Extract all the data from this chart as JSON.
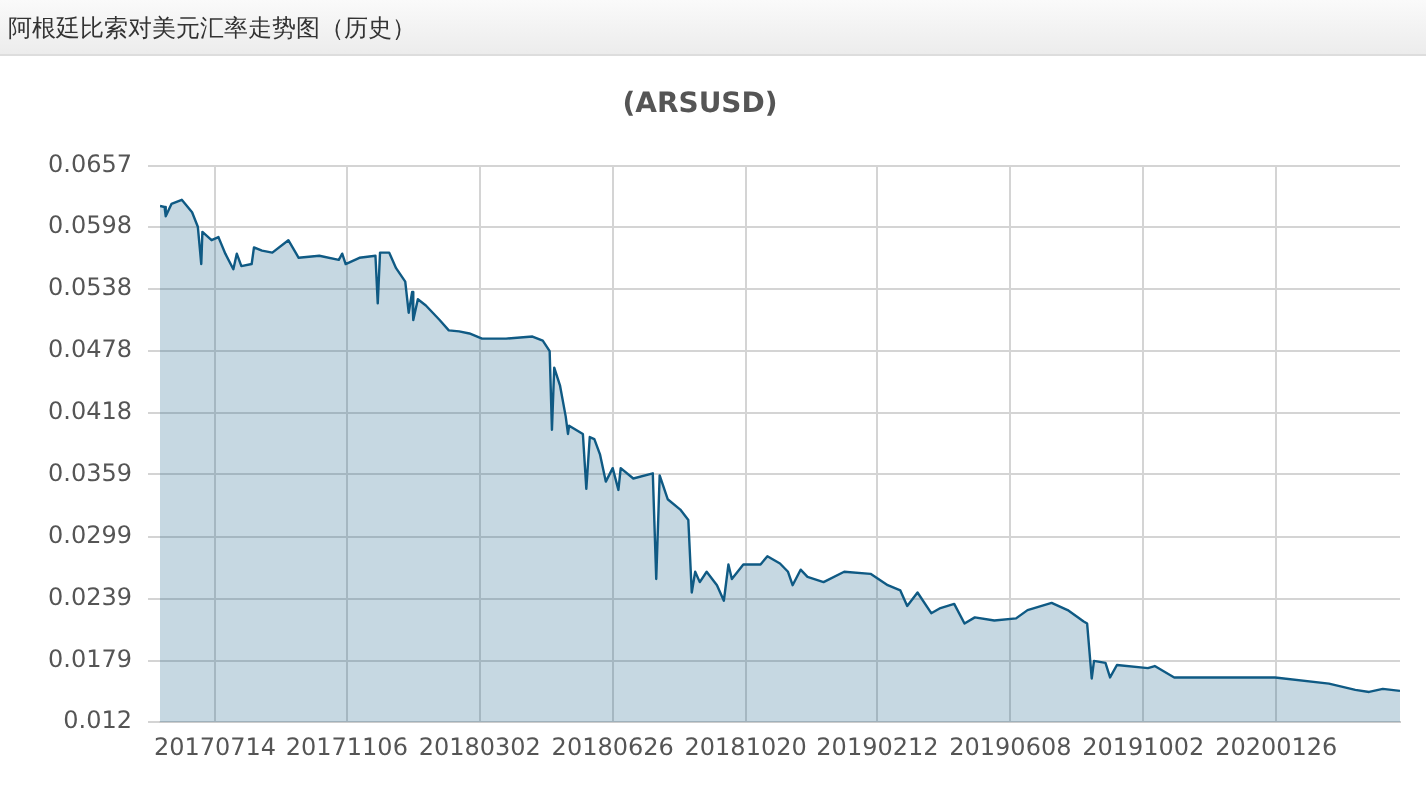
{
  "chart_data": {
    "type": "area",
    "title": "阿根廷比索对美元汇率走势图（历史）",
    "subtitle": "(ARSUSD)",
    "x": [
      "2017-05-27",
      "2017-05-31",
      "2017-06-01",
      "2017-06-06",
      "2017-06-15",
      "2017-06-24",
      "2017-06-29",
      "2017-07-02",
      "2017-07-03",
      "2017-07-11",
      "2017-07-17",
      "2017-07-23",
      "2017-07-30",
      "2017-08-02",
      "2017-08-06",
      "2017-08-15",
      "2017-08-17",
      "2017-08-24",
      "2017-09-02",
      "2017-09-16",
      "2017-09-25",
      "2017-10-13",
      "2017-10-30",
      "2017-11-02",
      "2017-11-05",
      "2017-11-17",
      "2017-12-01",
      "2017-12-03",
      "2017-12-05",
      "2017-12-13",
      "2017-12-19",
      "2017-12-27",
      "2017-12-30",
      "2018-01-02",
      "2018-01-03",
      "2018-01-07",
      "2018-01-14",
      "2018-01-26",
      "2018-02-03",
      "2018-02-12",
      "2018-02-21",
      "2018-03-04",
      "2018-03-25",
      "2018-04-17",
      "2018-04-26",
      "2018-05-02",
      "2018-05-04",
      "2018-05-06",
      "2018-05-11",
      "2018-05-16",
      "2018-05-18",
      "2018-05-19",
      "2018-05-31",
      "2018-06-03",
      "2018-06-06",
      "2018-06-10",
      "2018-06-15",
      "2018-06-20",
      "2018-06-26",
      "2018-07-01",
      "2018-07-03",
      "2018-07-14",
      "2018-07-31",
      "2018-08-03",
      "2018-08-06",
      "2018-08-13",
      "2018-08-24",
      "2018-08-31",
      "2018-09-03",
      "2018-09-06",
      "2018-09-10",
      "2018-09-16",
      "2018-09-25",
      "2018-10-01",
      "2018-10-05",
      "2018-10-08",
      "2018-10-18",
      "2018-11-02",
      "2018-11-08",
      "2018-11-19",
      "2018-11-26",
      "2018-11-30",
      "2018-12-07",
      "2018-12-13",
      "2018-12-27",
      "2019-01-14",
      "2019-02-06",
      "2019-02-21",
      "2019-03-04",
      "2019-03-10",
      "2019-03-19",
      "2019-03-31",
      "2019-04-08",
      "2019-04-20",
      "2019-04-29",
      "2019-05-08",
      "2019-05-25",
      "2019-06-13",
      "2019-06-23",
      "2019-07-14",
      "2019-07-28",
      "2019-08-11",
      "2019-08-14",
      "2019-08-18",
      "2019-08-20",
      "2019-08-30",
      "2019-09-03",
      "2019-09-09",
      "2019-10-06",
      "2019-10-12",
      "2019-10-29",
      "2019-11-28",
      "2020-01-25",
      "2020-03-12",
      "2020-04-04",
      "2020-04-16",
      "2020-04-28",
      "2020-05-13"
    ],
    "series": [
      {
        "color": "#0f5a84",
        "values": [
          0.0618,
          0.0617,
          0.0608,
          0.062,
          0.0624,
          0.0612,
          0.0598,
          0.0562,
          0.0593,
          0.0585,
          0.0588,
          0.0572,
          0.0557,
          0.0572,
          0.056,
          0.0562,
          0.0578,
          0.0575,
          0.0573,
          0.0585,
          0.0568,
          0.057,
          0.0566,
          0.0572,
          0.0562,
          0.0568,
          0.057,
          0.0524,
          0.0573,
          0.0573,
          0.0558,
          0.0545,
          0.0515,
          0.0535,
          0.0508,
          0.0528,
          0.0522,
          0.0508,
          0.0498,
          0.0497,
          0.0495,
          0.049,
          0.049,
          0.0492,
          0.0488,
          0.0478,
          0.0402,
          0.0462,
          0.0445,
          0.0415,
          0.0398,
          0.0406,
          0.0398,
          0.0345,
          0.0395,
          0.0393,
          0.0378,
          0.0352,
          0.0365,
          0.0344,
          0.0365,
          0.0355,
          0.036,
          0.0258,
          0.0358,
          0.0335,
          0.0325,
          0.0315,
          0.0245,
          0.0265,
          0.0255,
          0.0265,
          0.0252,
          0.0237,
          0.0272,
          0.0258,
          0.0272,
          0.0272,
          0.028,
          0.0273,
          0.0265,
          0.0252,
          0.0267,
          0.026,
          0.0255,
          0.0265,
          0.0263,
          0.0252,
          0.0247,
          0.0232,
          0.0245,
          0.0225,
          0.023,
          0.0234,
          0.0215,
          0.0221,
          0.0218,
          0.022,
          0.0228,
          0.0235,
          0.0228,
          0.0217,
          0.0215,
          0.0162,
          0.0179,
          0.0177,
          0.0163,
          0.0175,
          0.0172,
          0.0174,
          0.0163,
          0.0163,
          0.0163,
          0.0157,
          0.0151,
          0.0149,
          0.0152,
          0.015
        ]
      }
    ],
    "xlim": [
      "2017-05-27",
      "2020-05-13"
    ],
    "xticks": [
      {
        "value": "2017-07-14",
        "label": "20170714"
      },
      {
        "value": "2017-11-06",
        "label": "20171106"
      },
      {
        "value": "2018-03-02",
        "label": "20180302"
      },
      {
        "value": "2018-06-26",
        "label": "20180626"
      },
      {
        "value": "2018-10-20",
        "label": "20181020"
      },
      {
        "value": "2019-02-12",
        "label": "20190212"
      },
      {
        "value": "2019-06-08",
        "label": "20190608"
      },
      {
        "value": "2019-10-02",
        "label": "20191002"
      },
      {
        "value": "2020-01-26",
        "label": "20200126"
      }
    ],
    "ylim": [
      0.012,
      0.0657
    ],
    "yticks": [
      0.012,
      0.0179,
      0.0239,
      0.0299,
      0.0359,
      0.0418,
      0.0478,
      0.0538,
      0.0598,
      0.0657
    ],
    "grid": true,
    "legend": false,
    "marker": "none"
  }
}
